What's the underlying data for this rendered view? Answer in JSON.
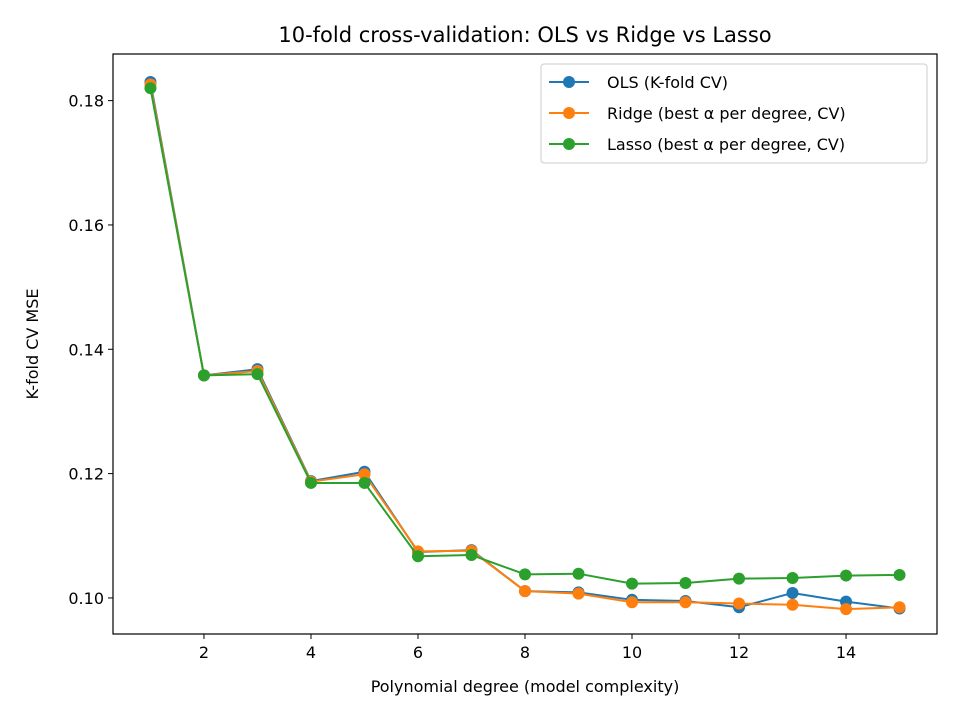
{
  "chart_data": {
    "type": "line",
    "title": "10-fold cross-validation: OLS vs Ridge vs Lasso",
    "xlabel": "Polynomial degree (model complexity)",
    "ylabel": "K-fold CV MSE",
    "xlim": [
      0.3,
      15.7
    ],
    "ylim": [
      0.0942,
      0.1875
    ],
    "xticks": [
      2,
      4,
      6,
      8,
      10,
      12,
      14
    ],
    "xtick_labels": [
      "2",
      "4",
      "6",
      "8",
      "10",
      "12",
      "14"
    ],
    "yticks": [
      0.1,
      0.12,
      0.14,
      0.16,
      0.18
    ],
    "ytick_labels": [
      "0.10",
      "0.12",
      "0.14",
      "0.16",
      "0.18"
    ],
    "grid": false,
    "legend_position": "top-right",
    "x": [
      1,
      2,
      3,
      4,
      5,
      6,
      7,
      8,
      9,
      10,
      11,
      12,
      13,
      14,
      15
    ],
    "series": [
      {
        "name": "OLS (K-fold CV)",
        "color": "#1f77b4",
        "values": [
          0.183,
          0.1358,
          0.1368,
          0.1188,
          0.1203,
          0.1074,
          0.1077,
          0.1011,
          0.1009,
          0.0997,
          0.0995,
          0.0985,
          0.1008,
          0.0994,
          0.0983
        ]
      },
      {
        "name": "Ridge (best α per degree, CV)",
        "color": "#ff7f0e",
        "values": [
          0.1826,
          0.1358,
          0.1365,
          0.1187,
          0.1199,
          0.1075,
          0.1076,
          0.1011,
          0.1007,
          0.0993,
          0.0993,
          0.0991,
          0.0989,
          0.0982,
          0.0985
        ]
      },
      {
        "name": "Lasso (best α per degree, CV)",
        "color": "#2ca02c",
        "values": [
          0.182,
          0.1358,
          0.136,
          0.1185,
          0.1185,
          0.1067,
          0.1069,
          0.1038,
          0.1039,
          0.1023,
          0.1024,
          0.1031,
          0.1032,
          0.1036,
          0.1037
        ]
      }
    ]
  }
}
